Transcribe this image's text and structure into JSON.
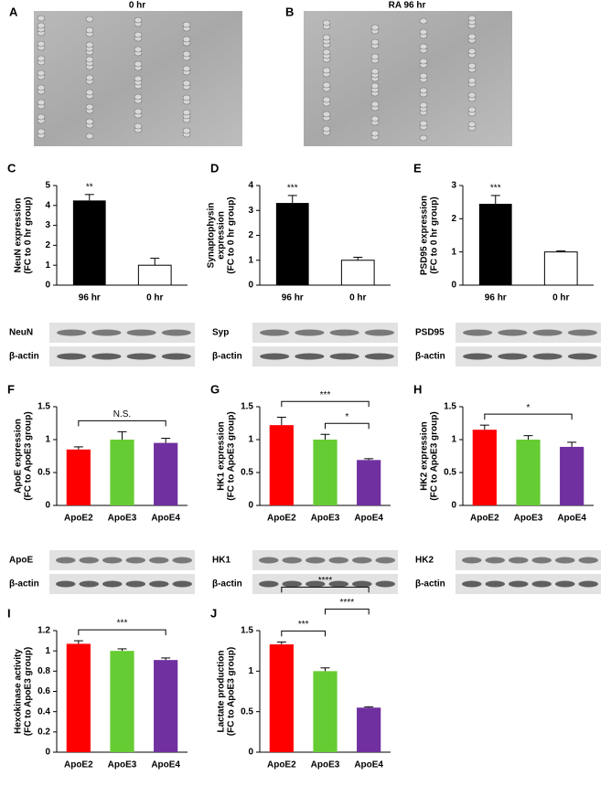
{
  "images": [
    {
      "panel": "A",
      "title": "0 hr"
    },
    {
      "panel": "B",
      "title": "RA 96 hr"
    }
  ],
  "chart_data": [
    {
      "type": "bar",
      "panel": "C",
      "ylabel": [
        "NeuN expression",
        "(FC to 0 hr group)"
      ],
      "categories": [
        "96 hr",
        "0 hr"
      ],
      "values": [
        4.25,
        1.0
      ],
      "errors": [
        0.3,
        0.35
      ],
      "colors": [
        "#000000",
        "#ffffff"
      ],
      "ylim": [
        0,
        5
      ],
      "yticks": [
        0,
        1,
        2,
        3,
        4,
        5
      ],
      "comparisons": [
        {
          "label": "**",
          "between": [
            "96 hr"
          ]
        }
      ],
      "blot_labels": [
        "NeuN",
        "β-actin"
      ]
    },
    {
      "type": "bar",
      "panel": "D",
      "ylabel": [
        "Synaptophysin",
        "expression",
        "(FC to 0 hr group)"
      ],
      "categories": [
        "96 hr",
        "0 hr"
      ],
      "values": [
        3.3,
        1.0
      ],
      "errors": [
        0.3,
        0.12
      ],
      "colors": [
        "#000000",
        "#ffffff"
      ],
      "ylim": [
        0,
        4
      ],
      "yticks": [
        0,
        1,
        2,
        3,
        4
      ],
      "comparisons": [
        {
          "label": "***",
          "between": [
            "96 hr"
          ]
        }
      ],
      "blot_labels": [
        "Syp",
        "β-actin"
      ]
    },
    {
      "type": "bar",
      "panel": "E",
      "ylabel": [
        "PSD95 expression",
        "(FC to 0 hr group)"
      ],
      "categories": [
        "96 hr",
        "0 hr"
      ],
      "values": [
        2.45,
        1.0
      ],
      "errors": [
        0.25,
        0.03
      ],
      "colors": [
        "#000000",
        "#ffffff"
      ],
      "ylim": [
        0,
        3
      ],
      "yticks": [
        0,
        1,
        2,
        3
      ],
      "comparisons": [
        {
          "label": "***",
          "between": [
            "96 hr"
          ]
        }
      ],
      "blot_labels": [
        "PSD95",
        "β-actin"
      ]
    },
    {
      "type": "bar",
      "panel": "F",
      "ylabel": [
        "ApoE expression",
        "(FC to ApoE3 group)"
      ],
      "categories": [
        "ApoE2",
        "ApoE3",
        "ApoE4"
      ],
      "values": [
        0.85,
        1.0,
        0.95
      ],
      "errors": [
        0.04,
        0.12,
        0.07
      ],
      "colors": [
        "#ff0000",
        "#66cc33",
        "#7030a0"
      ],
      "ylim": [
        0,
        1.5
      ],
      "yticks": [
        0,
        0.5,
        1,
        1.5
      ],
      "comparisons": [
        {
          "label": "N.S.",
          "between": [
            "ApoE2",
            "ApoE4"
          ]
        }
      ],
      "blot_labels": [
        "ApoE",
        "β-actin"
      ]
    },
    {
      "type": "bar",
      "panel": "G",
      "ylabel": [
        "HK1 expression",
        "(FC to ApoE3 group)"
      ],
      "categories": [
        "ApoE2",
        "ApoE3",
        "ApoE4"
      ],
      "values": [
        1.22,
        1.0,
        0.69
      ],
      "errors": [
        0.12,
        0.08,
        0.02
      ],
      "colors": [
        "#ff0000",
        "#66cc33",
        "#7030a0"
      ],
      "ylim": [
        0,
        1.5
      ],
      "yticks": [
        0,
        0.5,
        1,
        1.5
      ],
      "comparisons": [
        {
          "label": "*",
          "between": [
            "ApoE3",
            "ApoE4"
          ]
        },
        {
          "label": "***",
          "between": [
            "ApoE2",
            "ApoE4"
          ]
        }
      ],
      "blot_labels": [
        "HK1",
        "β-actin"
      ]
    },
    {
      "type": "bar",
      "panel": "H",
      "ylabel": [
        "HK2 expression",
        "(FC to ApoE3 group)"
      ],
      "categories": [
        "ApoE2",
        "ApoE3",
        "ApoE4"
      ],
      "values": [
        1.15,
        1.0,
        0.89
      ],
      "errors": [
        0.07,
        0.06,
        0.07
      ],
      "colors": [
        "#ff0000",
        "#66cc33",
        "#7030a0"
      ],
      "ylim": [
        0,
        1.5
      ],
      "yticks": [
        0,
        0.5,
        1,
        1.5
      ],
      "comparisons": [
        {
          "label": "*",
          "between": [
            "ApoE2",
            "ApoE4"
          ]
        }
      ],
      "blot_labels": [
        "HK2",
        "β-actin"
      ]
    },
    {
      "type": "bar",
      "panel": "I",
      "ylabel": [
        "Hexokinase activity",
        "(FC to ApoE3 group)"
      ],
      "categories": [
        "ApoE2",
        "ApoE3",
        "ApoE4"
      ],
      "values": [
        1.07,
        1.0,
        0.91
      ],
      "errors": [
        0.03,
        0.02,
        0.02
      ],
      "colors": [
        "#ff0000",
        "#66cc33",
        "#7030a0"
      ],
      "ylim": [
        0,
        1.2
      ],
      "yticks": [
        0,
        0.2,
        0.4,
        0.6,
        0.8,
        1,
        1.2
      ],
      "comparisons": [
        {
          "label": "***",
          "between": [
            "ApoE2",
            "ApoE4"
          ]
        }
      ]
    },
    {
      "type": "bar",
      "panel": "J",
      "ylabel": [
        "Lactate production",
        "(FC to ApoE3 group)"
      ],
      "categories": [
        "ApoE2",
        "ApoE3",
        "ApoE4"
      ],
      "values": [
        1.33,
        1.0,
        0.55
      ],
      "errors": [
        0.03,
        0.04,
        0.01
      ],
      "colors": [
        "#ff0000",
        "#66cc33",
        "#7030a0"
      ],
      "ylim": [
        0,
        1.5
      ],
      "yticks": [
        0,
        0.5,
        1,
        1.5
      ],
      "comparisons": [
        {
          "label": "***",
          "between": [
            "ApoE2",
            "ApoE3"
          ]
        },
        {
          "label": "****",
          "between": [
            "ApoE3",
            "ApoE4"
          ]
        },
        {
          "label": "****",
          "between": [
            "ApoE2",
            "ApoE4"
          ]
        }
      ]
    }
  ]
}
